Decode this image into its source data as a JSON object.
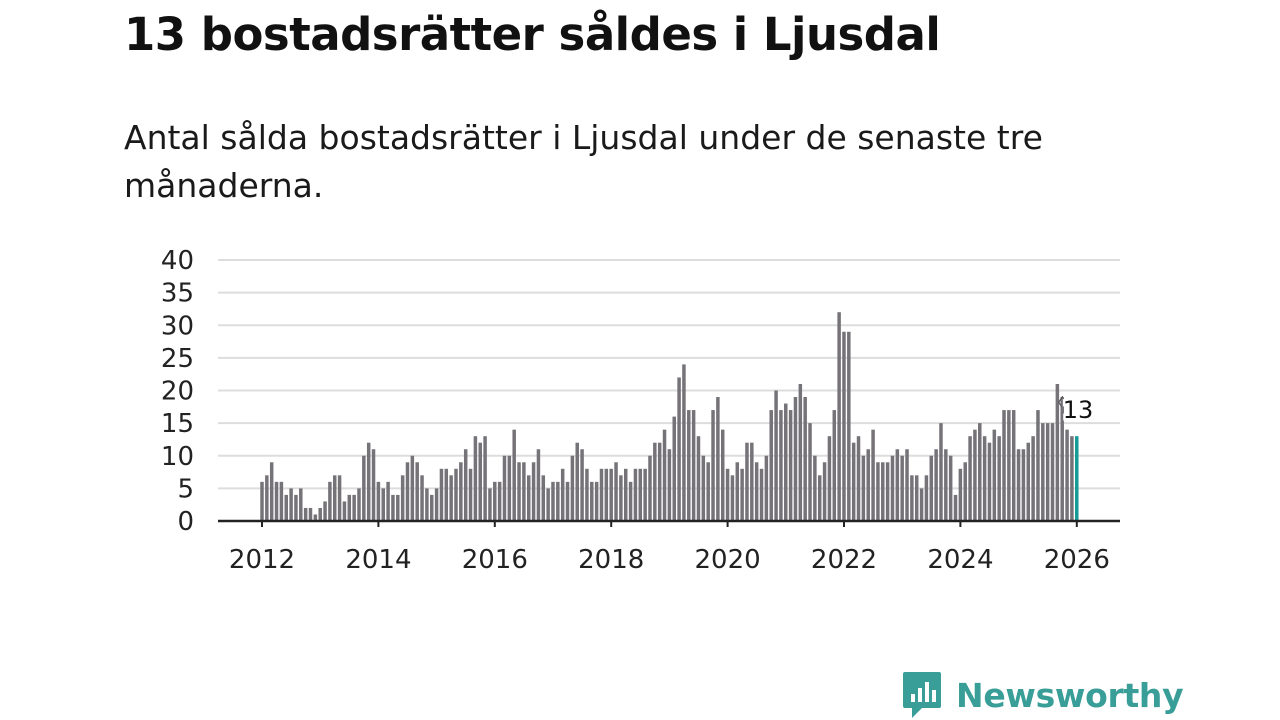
{
  "title": "13 bostadsrätter såldes i Ljusdal",
  "subtitle": "Antal sålda bostadsrätter i Ljusdal under de senaste tre månaderna.",
  "brand": {
    "name": "Newsworthy",
    "color": "#3a9e98",
    "icon": "newsworthy-logo-icon"
  },
  "chart_data": {
    "type": "bar",
    "title": "13 bostadsrätter såldes i Ljusdal",
    "subtitle": "Antal sålda bostadsrätter i Ljusdal under de senaste tre månaderna.",
    "xlabel": "",
    "ylabel": "",
    "ylim": [
      0,
      40
    ],
    "yticks": [
      0,
      5,
      10,
      15,
      20,
      25,
      30,
      35,
      40
    ],
    "xlim": [
      2011.7,
      2027.2
    ],
    "xticks": [
      2012,
      2014,
      2016,
      2018,
      2020,
      2022,
      2024,
      2026
    ],
    "grid": true,
    "x_start": 2012.0,
    "x_step_years": 0.08333,
    "values": [
      6,
      7,
      9,
      6,
      6,
      4,
      5,
      4,
      5,
      2,
      2,
      1,
      2,
      3,
      6,
      7,
      7,
      3,
      4,
      4,
      5,
      10,
      12,
      11,
      6,
      5,
      6,
      4,
      4,
      7,
      9,
      10,
      9,
      7,
      5,
      4,
      5,
      8,
      8,
      7,
      8,
      9,
      11,
      8,
      13,
      12,
      13,
      5,
      6,
      6,
      10,
      10,
      14,
      9,
      9,
      7,
      9,
      11,
      7,
      5,
      6,
      6,
      8,
      6,
      10,
      12,
      11,
      8,
      6,
      6,
      8,
      8,
      8,
      9,
      7,
      8,
      6,
      8,
      8,
      8,
      10,
      12,
      12,
      14,
      11,
      16,
      22,
      24,
      17,
      17,
      13,
      10,
      9,
      17,
      19,
      14,
      8,
      7,
      9,
      8,
      12,
      12,
      9,
      8,
      10,
      17,
      20,
      17,
      18,
      17,
      19,
      21,
      19,
      15,
      10,
      7,
      9,
      13,
      17,
      32,
      29,
      29,
      12,
      13,
      10,
      11,
      14,
      9,
      9,
      9,
      10,
      11,
      10,
      11,
      7,
      7,
      5,
      7,
      10,
      11,
      15,
      11,
      10,
      4,
      8,
      9,
      13,
      14,
      15,
      13,
      12,
      14,
      13,
      17,
      17,
      17,
      11,
      11,
      12,
      13,
      17,
      15,
      15,
      15,
      21,
      19,
      14,
      13,
      13
    ],
    "bar_color": "#757378",
    "highlight_color": "#149b96",
    "highlight_index_from_end": 1,
    "annotation": {
      "label": "13",
      "value": 13
    }
  }
}
